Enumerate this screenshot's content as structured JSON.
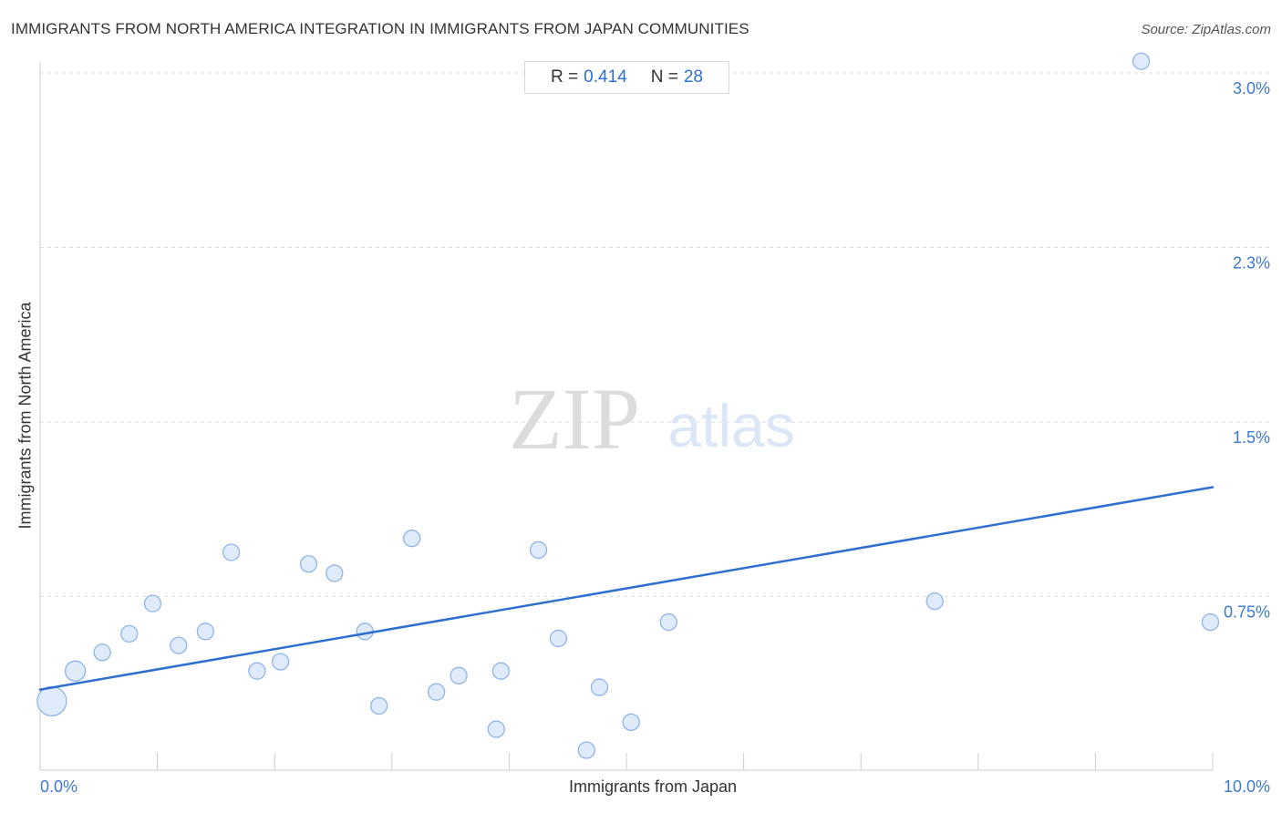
{
  "header": {
    "title": "IMMIGRANTS FROM NORTH AMERICA INTEGRATION IN IMMIGRANTS FROM JAPAN COMMUNITIES",
    "source": "Source: ZipAtlas.com"
  },
  "stats": {
    "r_label": "R =",
    "r_value": "0.414",
    "n_label": "N =",
    "n_value": "28"
  },
  "watermark": {
    "zip": "ZIP",
    "atlas": "atlas"
  },
  "colors": {
    "point_fill": "#dce9fb",
    "point_stroke": "#8fb4e8",
    "trend_line": "#2f6fcf",
    "grid": "#dddddd",
    "tick_text": "#3d79cf"
  },
  "chart_data": {
    "type": "scatter",
    "title": "IMMIGRANTS FROM NORTH AMERICA INTEGRATION IN IMMIGRANTS FROM JAPAN COMMUNITIES",
    "xlabel": "Immigrants from Japan",
    "ylabel": "Immigrants from North America",
    "xlim": [
      0,
      10
    ],
    "ylim": [
      0,
      3.0
    ],
    "y_ticks": [
      {
        "value": 0.75,
        "label": "0.75%"
      },
      {
        "value": 1.5,
        "label": "1.5%"
      },
      {
        "value": 2.25,
        "label": "2.3%"
      },
      {
        "value": 3.0,
        "label": "3.0%"
      }
    ],
    "x_ticks": [
      {
        "value": 0,
        "label": "0.0%"
      },
      {
        "value": 10,
        "label": "10.0%"
      }
    ],
    "grid": true,
    "trend_line": {
      "x": [
        0,
        10
      ],
      "y": [
        0.35,
        1.22
      ]
    },
    "points": [
      {
        "x": 0.1,
        "y": 0.3,
        "size": "large"
      },
      {
        "x": 0.3,
        "y": 0.43,
        "size": "medium"
      },
      {
        "x": 0.53,
        "y": 0.51
      },
      {
        "x": 0.76,
        "y": 0.59
      },
      {
        "x": 0.96,
        "y": 0.72
      },
      {
        "x": 1.18,
        "y": 0.54
      },
      {
        "x": 1.41,
        "y": 0.6
      },
      {
        "x": 1.63,
        "y": 0.94
      },
      {
        "x": 1.85,
        "y": 0.43
      },
      {
        "x": 2.05,
        "y": 0.47
      },
      {
        "x": 2.29,
        "y": 0.89
      },
      {
        "x": 2.51,
        "y": 0.85
      },
      {
        "x": 2.77,
        "y": 0.6
      },
      {
        "x": 2.89,
        "y": 0.28
      },
      {
        "x": 3.17,
        "y": 1.0
      },
      {
        "x": 3.38,
        "y": 0.34
      },
      {
        "x": 3.57,
        "y": 0.41
      },
      {
        "x": 3.89,
        "y": 0.18
      },
      {
        "x": 3.93,
        "y": 0.43
      },
      {
        "x": 4.25,
        "y": 0.95
      },
      {
        "x": 4.42,
        "y": 0.57
      },
      {
        "x": 4.66,
        "y": 0.09
      },
      {
        "x": 4.77,
        "y": 0.36
      },
      {
        "x": 5.04,
        "y": 0.21
      },
      {
        "x": 5.36,
        "y": 0.64
      },
      {
        "x": 7.63,
        "y": 0.73
      },
      {
        "x": 9.39,
        "y": 3.05
      },
      {
        "x": 9.98,
        "y": 0.64
      }
    ]
  }
}
